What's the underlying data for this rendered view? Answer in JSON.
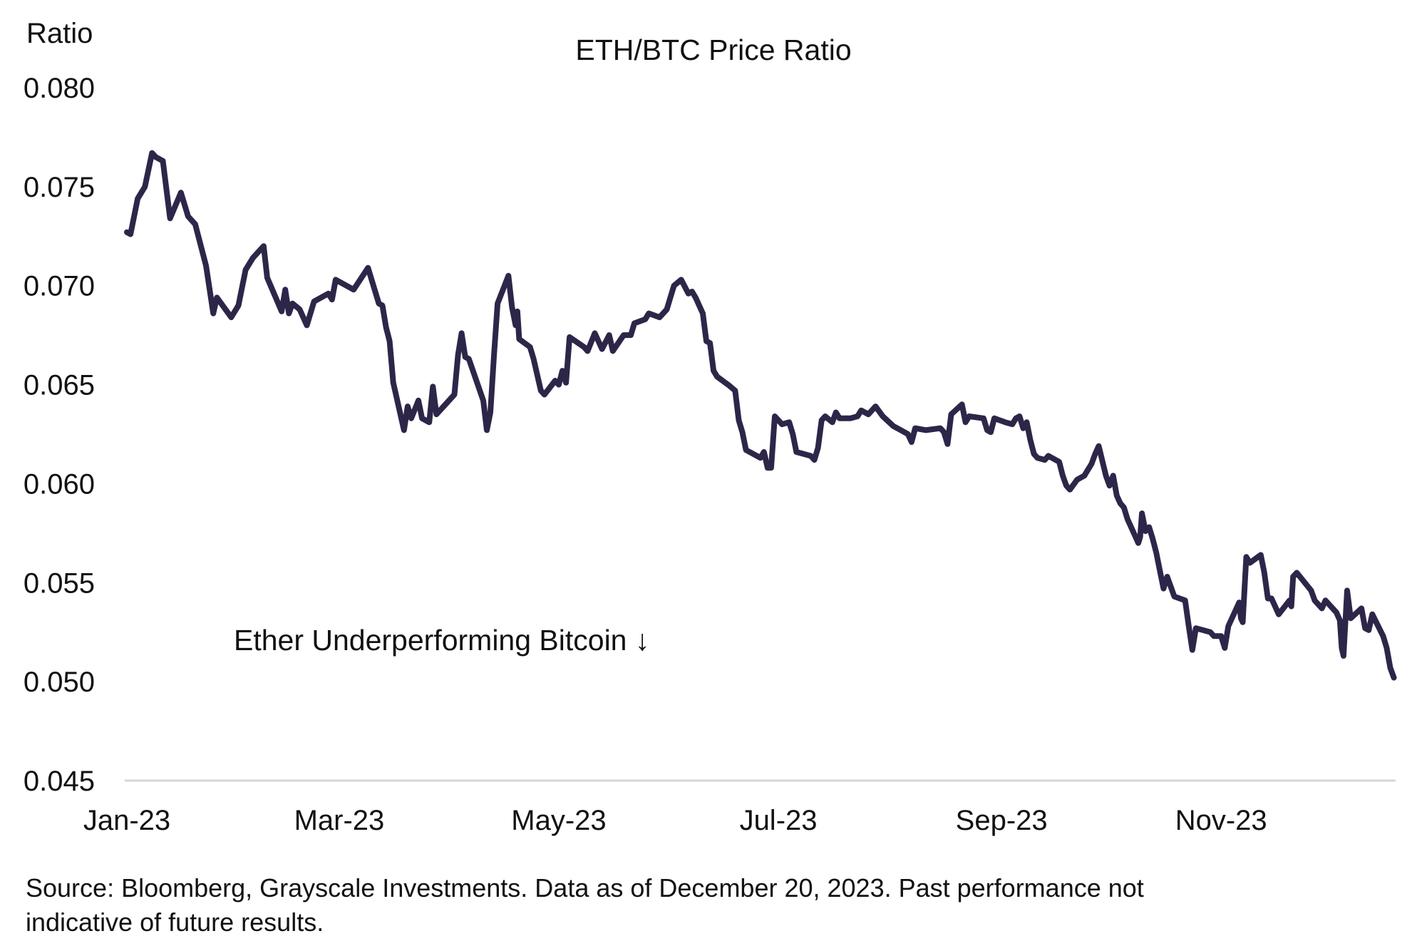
{
  "chart_data": {
    "type": "line",
    "title": "ETH/BTC Price Ratio",
    "ylabel": "Ratio",
    "xlabel": "",
    "ylim": [
      0.045,
      0.08
    ],
    "yticks": [
      "0.080",
      "0.075",
      "0.070",
      "0.065",
      "0.060",
      "0.055",
      "0.050",
      "0.045"
    ],
    "ytick_values": [
      0.08,
      0.075,
      0.07,
      0.065,
      0.06,
      0.055,
      0.05,
      0.045
    ],
    "xlim_days": [
      0,
      353
    ],
    "xticks": [
      "Jan-23",
      "Mar-23",
      "May-23",
      "Jul-23",
      "Sep-23",
      "Nov-23"
    ],
    "xtick_days": [
      0,
      59,
      120,
      181,
      243,
      304
    ],
    "x_unit": "days since 2023-01-01",
    "grid": false,
    "annotation": "Ether Underperforming Bitcoin ↓",
    "series": [
      {
        "name": "ETH/BTC",
        "color": "#2e2649",
        "x": [
          0,
          1,
          3,
          5,
          7,
          8,
          10,
          12,
          15,
          17,
          19,
          22,
          24,
          25,
          29,
          31,
          33,
          35,
          38,
          39,
          43,
          44,
          45,
          46,
          48,
          50,
          52,
          56,
          57,
          58,
          63,
          67,
          70,
          71,
          72,
          73,
          74,
          77,
          78,
          79,
          81,
          82,
          84,
          85,
          86,
          90,
          91,
          92,
          93,
          94,
          95,
          99,
          100,
          101,
          102,
          103,
          106,
          107,
          108,
          108.5,
          109,
          112,
          113,
          115,
          116,
          119,
          120,
          121,
          122,
          123,
          127,
          128,
          130,
          132,
          134,
          135,
          138,
          140,
          141,
          144,
          145,
          148,
          150,
          151,
          152,
          154,
          156,
          157,
          158,
          160,
          161,
          162,
          163,
          164,
          167,
          169,
          170,
          171,
          172,
          175,
          176,
          177,
          178,
          179,
          180,
          182,
          184,
          185,
          186,
          190,
          191,
          192,
          193,
          194,
          196,
          197,
          198,
          201,
          203,
          204,
          206,
          208,
          210,
          213,
          215,
          217,
          218,
          219,
          222,
          226,
          227,
          228,
          229,
          232,
          233,
          234,
          238,
          239,
          240,
          241,
          244,
          246,
          247,
          248,
          249,
          250,
          251,
          252,
          253,
          255,
          256,
          259,
          260,
          261,
          262,
          264,
          266,
          267,
          268,
          269,
          270,
          272,
          273,
          274,
          275,
          276,
          277,
          278,
          280,
          281,
          281.5,
          282,
          283,
          284,
          285,
          286,
          287,
          288,
          289,
          290,
          291,
          294,
          295,
          296,
          297,
          301,
          302,
          304,
          305,
          306,
          309,
          309.5,
          310,
          311,
          312,
          315,
          316,
          317,
          318,
          320,
          323,
          323.5,
          324,
          325,
          329,
          330,
          332,
          333,
          336,
          337,
          337.5,
          338,
          339,
          340,
          343,
          344,
          345,
          346,
          349,
          350,
          351,
          352
        ],
        "values": [
          0.0727,
          0.0726,
          0.0744,
          0.075,
          0.0767,
          0.0765,
          0.0763,
          0.0734,
          0.0747,
          0.0735,
          0.0731,
          0.071,
          0.0686,
          0.0694,
          0.0684,
          0.069,
          0.0708,
          0.0714,
          0.072,
          0.0704,
          0.0687,
          0.0698,
          0.0686,
          0.0691,
          0.0688,
          0.068,
          0.0692,
          0.0696,
          0.0693,
          0.0703,
          0.0698,
          0.0709,
          0.0691,
          0.069,
          0.0679,
          0.0672,
          0.0651,
          0.0627,
          0.0639,
          0.0633,
          0.0642,
          0.0633,
          0.0631,
          0.0649,
          0.0635,
          0.0643,
          0.0645,
          0.0665,
          0.0676,
          0.0664,
          0.0663,
          0.0642,
          0.0627,
          0.0636,
          0.0665,
          0.0691,
          0.0705,
          0.0689,
          0.068,
          0.0687,
          0.0673,
          0.0669,
          0.0663,
          0.0647,
          0.0645,
          0.0652,
          0.065,
          0.0657,
          0.0651,
          0.0674,
          0.0669,
          0.0667,
          0.0676,
          0.0668,
          0.0675,
          0.0667,
          0.0675,
          0.0675,
          0.0681,
          0.0683,
          0.0686,
          0.0684,
          0.0688,
          0.0694,
          0.07,
          0.0703,
          0.0696,
          0.0697,
          0.0694,
          0.0686,
          0.0672,
          0.0671,
          0.0657,
          0.0654,
          0.065,
          0.0647,
          0.0632,
          0.0626,
          0.0617,
          0.0614,
          0.0613,
          0.0616,
          0.0608,
          0.0608,
          0.0634,
          0.063,
          0.0631,
          0.0625,
          0.0616,
          0.0614,
          0.0612,
          0.0618,
          0.0632,
          0.0634,
          0.0631,
          0.0636,
          0.0633,
          0.0633,
          0.0634,
          0.0637,
          0.0635,
          0.0639,
          0.0634,
          0.0629,
          0.0627,
          0.0625,
          0.0621,
          0.0628,
          0.0627,
          0.0628,
          0.0626,
          0.062,
          0.0635,
          0.064,
          0.0631,
          0.0634,
          0.0633,
          0.0627,
          0.0626,
          0.0633,
          0.0631,
          0.063,
          0.0633,
          0.0634,
          0.0628,
          0.0631,
          0.0622,
          0.0615,
          0.0613,
          0.0612,
          0.0614,
          0.0611,
          0.0604,
          0.0599,
          0.0597,
          0.0602,
          0.0604,
          0.0607,
          0.061,
          0.0615,
          0.0619,
          0.0604,
          0.0599,
          0.0604,
          0.0594,
          0.059,
          0.0588,
          0.0582,
          0.0574,
          0.057,
          0.0573,
          0.0585,
          0.0576,
          0.0578,
          0.0572,
          0.0565,
          0.0556,
          0.0547,
          0.0553,
          0.0548,
          0.0543,
          0.0541,
          0.0528,
          0.0516,
          0.0527,
          0.0525,
          0.0523,
          0.0523,
          0.0517,
          0.0528,
          0.054,
          0.0532,
          0.053,
          0.0563,
          0.056,
          0.0564,
          0.0555,
          0.0542,
          0.0542,
          0.0534,
          0.0541,
          0.0538,
          0.0553,
          0.0555,
          0.0546,
          0.0541,
          0.0537,
          0.0541,
          0.0535,
          0.0531,
          0.0517,
          0.0513,
          0.0546,
          0.0532,
          0.0537,
          0.0527,
          0.0526,
          0.0534,
          0.0523,
          0.0517,
          0.0507,
          0.0502
        ]
      }
    ]
  },
  "footer": {
    "source_line1": "Source: Bloomberg,  Grayscale Investments. Data as of December 20, 2023. Past performance not",
    "source_line2": "indicative of future results."
  }
}
